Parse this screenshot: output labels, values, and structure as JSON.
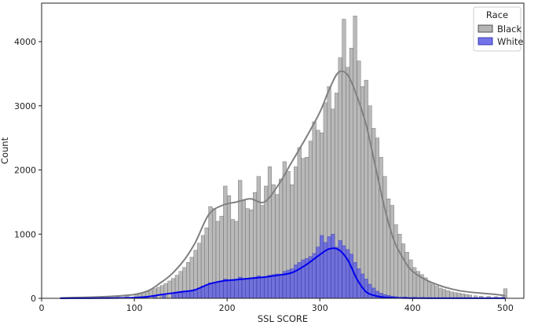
{
  "chart_data": {
    "type": "histogram",
    "xlabel": "SSL SCORE",
    "ylabel": "Count",
    "xlim": [
      0,
      520
    ],
    "ylim": [
      0,
      4600
    ],
    "xticks": [
      0,
      100,
      200,
      300,
      400,
      500
    ],
    "yticks": [
      0,
      1000,
      2000,
      3000,
      4000
    ],
    "bin_width": 4,
    "legend": {
      "title": "Race",
      "placement": "top-right"
    },
    "kde_x": [
      20,
      100,
      130,
      150,
      165,
      180,
      195,
      210,
      225,
      240,
      255,
      270,
      285,
      300,
      310,
      320,
      330,
      340,
      350,
      360,
      370,
      380,
      390,
      400,
      420,
      450,
      490,
      500
    ],
    "series": [
      {
        "name": "Black",
        "color": "#a7a7a7",
        "kde_color": "#808080",
        "bins": [
          [
            20,
            10
          ],
          [
            30,
            15
          ],
          [
            40,
            15
          ],
          [
            50,
            15
          ],
          [
            60,
            20
          ],
          [
            70,
            30
          ],
          [
            80,
            40
          ],
          [
            90,
            55
          ],
          [
            100,
            70
          ],
          [
            104,
            80
          ],
          [
            108,
            95
          ],
          [
            112,
            110
          ],
          [
            116,
            125
          ],
          [
            120,
            150
          ],
          [
            124,
            175
          ],
          [
            128,
            200
          ],
          [
            132,
            230
          ],
          [
            136,
            270
          ],
          [
            140,
            310
          ],
          [
            144,
            360
          ],
          [
            148,
            420
          ],
          [
            152,
            480
          ],
          [
            156,
            560
          ],
          [
            160,
            640
          ],
          [
            164,
            750
          ],
          [
            168,
            860
          ],
          [
            172,
            980
          ],
          [
            176,
            1100
          ],
          [
            180,
            1430
          ],
          [
            184,
            1400
          ],
          [
            188,
            1200
          ],
          [
            192,
            1280
          ],
          [
            196,
            1750
          ],
          [
            200,
            1600
          ],
          [
            204,
            1230
          ],
          [
            208,
            1200
          ],
          [
            212,
            1840
          ],
          [
            216,
            1520
          ],
          [
            220,
            1400
          ],
          [
            224,
            1380
          ],
          [
            228,
            1650
          ],
          [
            232,
            1900
          ],
          [
            236,
            1450
          ],
          [
            240,
            1750
          ],
          [
            244,
            2050
          ],
          [
            248,
            1770
          ],
          [
            252,
            1620
          ],
          [
            256,
            1860
          ],
          [
            260,
            2130
          ],
          [
            264,
            1980
          ],
          [
            268,
            1770
          ],
          [
            272,
            2050
          ],
          [
            276,
            2350
          ],
          [
            280,
            2180
          ],
          [
            284,
            2200
          ],
          [
            288,
            2450
          ],
          [
            292,
            2750
          ],
          [
            296,
            2620
          ],
          [
            300,
            2580
          ],
          [
            304,
            3050
          ],
          [
            308,
            3300
          ],
          [
            312,
            2950
          ],
          [
            316,
            3200
          ],
          [
            320,
            3750
          ],
          [
            324,
            4350
          ],
          [
            328,
            3600
          ],
          [
            332,
            3900
          ],
          [
            336,
            4400
          ],
          [
            340,
            3700
          ],
          [
            344,
            3300
          ],
          [
            348,
            3400
          ],
          [
            352,
            3000
          ],
          [
            356,
            2650
          ],
          [
            360,
            2500
          ],
          [
            364,
            2200
          ],
          [
            368,
            1900
          ],
          [
            372,
            1550
          ],
          [
            376,
            1450
          ],
          [
            380,
            1150
          ],
          [
            384,
            1000
          ],
          [
            388,
            850
          ],
          [
            392,
            720
          ],
          [
            396,
            600
          ],
          [
            400,
            480
          ],
          [
            404,
            420
          ],
          [
            408,
            370
          ],
          [
            412,
            320
          ],
          [
            416,
            260
          ],
          [
            420,
            220
          ],
          [
            424,
            190
          ],
          [
            428,
            160
          ],
          [
            432,
            140
          ],
          [
            436,
            120
          ],
          [
            440,
            100
          ],
          [
            444,
            90
          ],
          [
            448,
            80
          ],
          [
            452,
            70
          ],
          [
            456,
            60
          ],
          [
            460,
            50
          ],
          [
            466,
            40
          ],
          [
            472,
            35
          ],
          [
            480,
            30
          ],
          [
            488,
            25
          ],
          [
            496,
            25
          ],
          [
            498,
            150
          ]
        ],
        "kde_y": [
          5,
          60,
          260,
          530,
          850,
          1300,
          1450,
          1500,
          1550,
          1500,
          1760,
          2130,
          2500,
          2900,
          3250,
          3520,
          3480,
          3150,
          2700,
          2050,
          1400,
          900,
          620,
          420,
          250,
          120,
          60,
          40
        ]
      },
      {
        "name": "White",
        "color": "#5a5ae6",
        "kde_color": "#0000ee",
        "bins": [
          [
            100,
            20
          ],
          [
            110,
            30
          ],
          [
            120,
            45
          ],
          [
            130,
            60
          ],
          [
            140,
            75
          ],
          [
            144,
            80
          ],
          [
            148,
            90
          ],
          [
            152,
            100
          ],
          [
            156,
            110
          ],
          [
            160,
            120
          ],
          [
            164,
            140
          ],
          [
            168,
            160
          ],
          [
            172,
            190
          ],
          [
            176,
            210
          ],
          [
            180,
            240
          ],
          [
            184,
            230
          ],
          [
            188,
            250
          ],
          [
            192,
            260
          ],
          [
            196,
            300
          ],
          [
            200,
            290
          ],
          [
            204,
            280
          ],
          [
            208,
            290
          ],
          [
            212,
            330
          ],
          [
            216,
            310
          ],
          [
            220,
            300
          ],
          [
            224,
            320
          ],
          [
            228,
            330
          ],
          [
            232,
            350
          ],
          [
            236,
            330
          ],
          [
            240,
            340
          ],
          [
            244,
            360
          ],
          [
            248,
            370
          ],
          [
            252,
            380
          ],
          [
            256,
            370
          ],
          [
            260,
            420
          ],
          [
            264,
            440
          ],
          [
            268,
            460
          ],
          [
            272,
            520
          ],
          [
            276,
            560
          ],
          [
            280,
            600
          ],
          [
            284,
            620
          ],
          [
            288,
            650
          ],
          [
            292,
            700
          ],
          [
            296,
            800
          ],
          [
            300,
            980
          ],
          [
            304,
            870
          ],
          [
            308,
            960
          ],
          [
            312,
            1000
          ],
          [
            316,
            800
          ],
          [
            320,
            900
          ],
          [
            324,
            820
          ],
          [
            328,
            760
          ],
          [
            332,
            690
          ],
          [
            336,
            560
          ],
          [
            340,
            460
          ],
          [
            344,
            380
          ],
          [
            348,
            300
          ],
          [
            352,
            220
          ],
          [
            356,
            160
          ],
          [
            360,
            110
          ],
          [
            364,
            80
          ],
          [
            368,
            60
          ],
          [
            372,
            45
          ],
          [
            376,
            35
          ],
          [
            380,
            25
          ],
          [
            390,
            20
          ],
          [
            400,
            15
          ],
          [
            410,
            12
          ],
          [
            420,
            10
          ],
          [
            440,
            10
          ]
        ],
        "kde_y": [
          0,
          10,
          60,
          100,
          130,
          220,
          270,
          290,
          310,
          330,
          360,
          400,
          520,
          680,
          770,
          760,
          600,
          300,
          100,
          40,
          15,
          8,
          5,
          3,
          2,
          2,
          2,
          2
        ]
      }
    ]
  }
}
